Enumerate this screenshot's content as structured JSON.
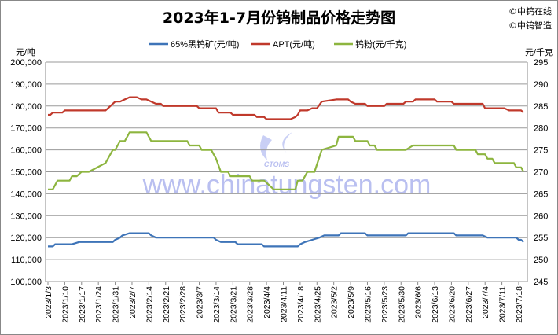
{
  "copyright": [
    "©中钨在线",
    "©中钨智造"
  ],
  "watermark": {
    "url": "www.chinatungsten.com",
    "logo": "CTOMS"
  },
  "chart_data": {
    "type": "line",
    "title": "2023年1-7月份钨制品价格走势图",
    "ylabel_left": "元/吨",
    "ylabel_right": "元/千克",
    "ylim_left": [
      100000,
      200000
    ],
    "ylim_right": [
      245,
      295
    ],
    "yticks_left": [
      "100,000",
      "110,000",
      "120,000",
      "130,000",
      "140,000",
      "150,000",
      "160,000",
      "170,000",
      "180,000",
      "190,000",
      "200,000"
    ],
    "yticks_right": [
      "245",
      "250",
      "255",
      "260",
      "265",
      "270",
      "275",
      "280",
      "285",
      "290",
      "295"
    ],
    "xticks": [
      "2023/1/3",
      "2023/1/10",
      "2023/1/17",
      "2023/1/24",
      "2023/1/31",
      "2023/2/7",
      "2023/2/14",
      "2023/2/21",
      "2023/2/28",
      "2023/3/7",
      "2023/3/14",
      "2023/3/21",
      "2023/3/28",
      "2023/4/4",
      "2023/4/11",
      "2023/4/18",
      "2023/4/25",
      "2023/5/2",
      "2023/5/9",
      "2023/5/16",
      "2023/5/23",
      "2023/5/30",
      "2023/6/6",
      "2023/6/13",
      "2023/6/20",
      "2023/6/27",
      "2023/7/4",
      "2023/7/11",
      "2023/7/18"
    ],
    "grid": true,
    "legend": "top",
    "series": [
      {
        "name": "65%黑钨矿(元/吨)",
        "axis": "left",
        "color": "#3e74b8",
        "points": [
          [
            "2023/1/3",
            116000
          ],
          [
            "2023/1/5",
            116000
          ],
          [
            "2023/1/6",
            117000
          ],
          [
            "2023/1/13",
            117000
          ],
          [
            "2023/1/16",
            118000
          ],
          [
            "2023/1/30",
            118000
          ],
          [
            "2023/1/31",
            119000
          ],
          [
            "2023/2/2",
            120000
          ],
          [
            "2023/2/3",
            121000
          ],
          [
            "2023/2/6",
            122000
          ],
          [
            "2023/2/14",
            122000
          ],
          [
            "2023/2/15",
            121000
          ],
          [
            "2023/2/17",
            120000
          ],
          [
            "2023/3/13",
            120000
          ],
          [
            "2023/3/14",
            119000
          ],
          [
            "2023/3/16",
            118000
          ],
          [
            "2023/3/22",
            118000
          ],
          [
            "2023/3/23",
            117000
          ],
          [
            "2023/4/2",
            117000
          ],
          [
            "2023/4/3",
            116000
          ],
          [
            "2023/4/17",
            116000
          ],
          [
            "2023/4/18",
            117000
          ],
          [
            "2023/4/20",
            118000
          ],
          [
            "2023/4/23",
            119000
          ],
          [
            "2023/4/26",
            120000
          ],
          [
            "2023/4/28",
            121000
          ],
          [
            "2023/5/4",
            121000
          ],
          [
            "2023/5/5",
            122000
          ],
          [
            "2023/5/15",
            122000
          ],
          [
            "2023/5/16",
            121000
          ],
          [
            "2023/6/1",
            121000
          ],
          [
            "2023/6/2",
            122000
          ],
          [
            "2023/6/21",
            122000
          ],
          [
            "2023/6/22",
            121000
          ],
          [
            "2023/7/3",
            121000
          ],
          [
            "2023/7/5",
            120000
          ],
          [
            "2023/7/17",
            120000
          ],
          [
            "2023/7/18",
            119000
          ],
          [
            "2023/7/19",
            119000
          ],
          [
            "2023/7/20",
            118000
          ]
        ]
      },
      {
        "name": "APT(元/吨)",
        "axis": "left",
        "color": "#c0392b",
        "points": [
          [
            "2023/1/3",
            176000
          ],
          [
            "2023/1/4",
            176000
          ],
          [
            "2023/1/5",
            177000
          ],
          [
            "2023/1/9",
            177000
          ],
          [
            "2023/1/10",
            178000
          ],
          [
            "2023/1/27",
            178000
          ],
          [
            "2023/1/31",
            182000
          ],
          [
            "2023/2/2",
            182000
          ],
          [
            "2023/2/4",
            183000
          ],
          [
            "2023/2/6",
            184000
          ],
          [
            "2023/2/9",
            184000
          ],
          [
            "2023/2/11",
            183000
          ],
          [
            "2023/2/13",
            183000
          ],
          [
            "2023/2/15",
            182000
          ],
          [
            "2023/2/17",
            181000
          ],
          [
            "2023/2/19",
            181000
          ],
          [
            "2023/2/20",
            180000
          ],
          [
            "2023/3/6",
            180000
          ],
          [
            "2023/3/7",
            179000
          ],
          [
            "2023/3/14",
            179000
          ],
          [
            "2023/3/15",
            177000
          ],
          [
            "2023/3/20",
            177000
          ],
          [
            "2023/3/21",
            176000
          ],
          [
            "2023/3/30",
            176000
          ],
          [
            "2023/3/31",
            175000
          ],
          [
            "2023/4/3",
            175000
          ],
          [
            "2023/4/4",
            174000
          ],
          [
            "2023/4/14",
            174000
          ],
          [
            "2023/4/16",
            175000
          ],
          [
            "2023/4/17",
            176000
          ],
          [
            "2023/4/18",
            178000
          ],
          [
            "2023/4/21",
            178000
          ],
          [
            "2023/4/23",
            179000
          ],
          [
            "2023/4/25",
            179000
          ],
          [
            "2023/4/27",
            182000
          ],
          [
            "2023/5/3",
            183000
          ],
          [
            "2023/5/8",
            183000
          ],
          [
            "2023/5/9",
            182000
          ],
          [
            "2023/5/11",
            181000
          ],
          [
            "2023/5/15",
            181000
          ],
          [
            "2023/5/16",
            180000
          ],
          [
            "2023/5/23",
            180000
          ],
          [
            "2023/5/24",
            181000
          ],
          [
            "2023/5/31",
            181000
          ],
          [
            "2023/6/1",
            182000
          ],
          [
            "2023/6/4",
            182000
          ],
          [
            "2023/6/5",
            183000
          ],
          [
            "2023/6/13",
            183000
          ],
          [
            "2023/6/14",
            182000
          ],
          [
            "2023/6/20",
            182000
          ],
          [
            "2023/6/21",
            181000
          ],
          [
            "2023/7/3",
            181000
          ],
          [
            "2023/7/4",
            179000
          ],
          [
            "2023/7/12",
            179000
          ],
          [
            "2023/7/14",
            178000
          ],
          [
            "2023/7/19",
            178000
          ],
          [
            "2023/7/20",
            177000
          ]
        ]
      },
      {
        "name": "钨粉(元/千克)",
        "axis": "right",
        "color": "#8db53f",
        "points": [
          [
            "2023/1/3",
            266
          ],
          [
            "2023/1/5",
            266
          ],
          [
            "2023/1/7",
            268
          ],
          [
            "2023/1/12",
            268
          ],
          [
            "2023/1/13",
            269
          ],
          [
            "2023/1/15",
            269
          ],
          [
            "2023/1/17",
            270
          ],
          [
            "2023/1/20",
            270
          ],
          [
            "2023/1/27",
            272
          ],
          [
            "2023/1/30",
            275
          ],
          [
            "2023/1/31",
            275
          ],
          [
            "2023/2/2",
            277
          ],
          [
            "2023/2/4",
            277
          ],
          [
            "2023/2/6",
            279
          ],
          [
            "2023/2/13",
            279
          ],
          [
            "2023/2/15",
            277
          ],
          [
            "2023/3/2",
            277
          ],
          [
            "2023/3/3",
            276
          ],
          [
            "2023/3/7",
            276
          ],
          [
            "2023/3/8",
            275
          ],
          [
            "2023/3/12",
            275
          ],
          [
            "2023/3/14",
            273
          ],
          [
            "2023/3/16",
            270
          ],
          [
            "2023/3/19",
            270
          ],
          [
            "2023/3/20",
            269
          ],
          [
            "2023/3/28",
            269
          ],
          [
            "2023/3/29",
            268
          ],
          [
            "2023/4/3",
            268
          ],
          [
            "2023/4/5",
            267
          ],
          [
            "2023/4/7",
            266
          ],
          [
            "2023/4/16",
            266
          ],
          [
            "2023/4/17",
            268
          ],
          [
            "2023/4/19",
            268
          ],
          [
            "2023/4/21",
            270
          ],
          [
            "2023/4/24",
            270
          ],
          [
            "2023/4/27",
            275
          ],
          [
            "2023/5/3",
            276
          ],
          [
            "2023/5/4",
            278
          ],
          [
            "2023/5/10",
            278
          ],
          [
            "2023/5/11",
            277
          ],
          [
            "2023/5/16",
            277
          ],
          [
            "2023/5/17",
            276
          ],
          [
            "2023/5/19",
            276
          ],
          [
            "2023/5/20",
            275
          ],
          [
            "2023/6/1",
            275
          ],
          [
            "2023/6/4",
            276
          ],
          [
            "2023/6/21",
            276
          ],
          [
            "2023/6/22",
            275
          ],
          [
            "2023/6/30",
            275
          ],
          [
            "2023/7/1",
            274
          ],
          [
            "2023/7/4",
            274
          ],
          [
            "2023/7/5",
            273
          ],
          [
            "2023/7/7",
            273
          ],
          [
            "2023/7/8",
            272
          ],
          [
            "2023/7/16",
            272
          ],
          [
            "2023/7/17",
            271
          ],
          [
            "2023/7/19",
            271
          ],
          [
            "2023/7/20",
            270
          ]
        ]
      }
    ]
  }
}
